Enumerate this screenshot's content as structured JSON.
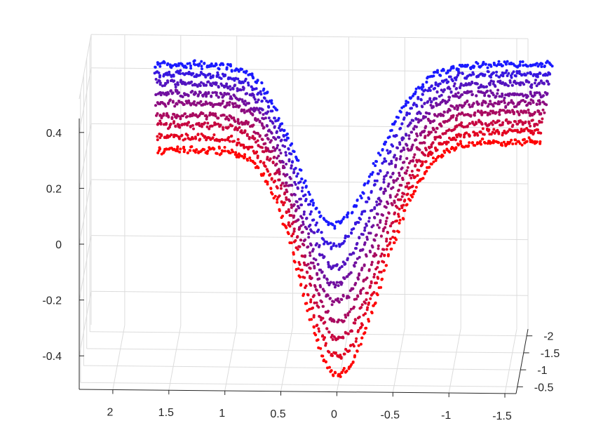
{
  "chart_data": {
    "type": "scatter",
    "title": "",
    "xlabel": "",
    "ylabel": "",
    "zlabel": "",
    "grid": true,
    "legend": "none",
    "view": "3d",
    "x_axis": {
      "ticks": [
        2,
        1.5,
        1,
        0.5,
        0,
        -0.5,
        -1,
        -1.5
      ],
      "tick_labels": [
        "2",
        "1.5",
        "1",
        "0.5",
        "0",
        "-0.5",
        "-1",
        "-1.5"
      ],
      "range": [
        2.3,
        -1.6
      ]
    },
    "y_axis": {
      "ticks": [
        -0.5,
        -1,
        -1.5,
        -2
      ],
      "tick_labels": [
        "-0.5",
        "-1",
        "-1.5",
        "-2"
      ],
      "range": [
        -0.3,
        -2.2
      ]
    },
    "z_axis": {
      "ticks": [
        -0.4,
        -0.2,
        0,
        0.2,
        0.4
      ],
      "tick_labels": [
        "-0.4",
        "-0.2",
        "0",
        "0.2",
        "0.4"
      ],
      "range": [
        -0.52,
        0.52
      ]
    },
    "colormap": {
      "start": "#ff0000",
      "end": "#1a1aff"
    },
    "series_shape": "v-shaped trough",
    "series": [
      {
        "y": -0.4,
        "plateau_left": 0.33,
        "plateau_right": 0.37,
        "min_z": -0.47,
        "min_x": 0.0,
        "left_x": 1.6,
        "right_x": -1.8
      },
      {
        "y": -0.6,
        "plateau_left": 0.35,
        "plateau_right": 0.38,
        "min_z": -0.43,
        "min_x": 0.01,
        "left_x": 1.62,
        "right_x": -1.8
      },
      {
        "y": -0.8,
        "plateau_left": 0.37,
        "plateau_right": 0.39,
        "min_z": -0.39,
        "min_x": 0.02,
        "left_x": 1.63,
        "right_x": -1.8
      },
      {
        "y": -1.0,
        "plateau_left": 0.38,
        "plateau_right": 0.4,
        "min_z": -0.35,
        "min_x": 0.04,
        "left_x": 1.64,
        "right_x": -1.81
      },
      {
        "y": -1.2,
        "plateau_left": 0.4,
        "plateau_right": 0.41,
        "min_z": -0.31,
        "min_x": 0.06,
        "left_x": 1.66,
        "right_x": -1.81
      },
      {
        "y": -1.4,
        "plateau_left": 0.41,
        "plateau_right": 0.42,
        "min_z": -0.27,
        "min_x": 0.08,
        "left_x": 1.67,
        "right_x": -1.81
      },
      {
        "y": -1.6,
        "plateau_left": 0.42,
        "plateau_right": 0.43,
        "min_z": -0.23,
        "min_x": 0.09,
        "left_x": 1.68,
        "right_x": -1.82
      },
      {
        "y": -1.8,
        "plateau_left": 0.43,
        "plateau_right": 0.44,
        "min_z": -0.18,
        "min_x": 0.11,
        "left_x": 1.7,
        "right_x": -1.82
      },
      {
        "y": -2.0,
        "plateau_left": 0.44,
        "plateau_right": 0.45,
        "min_z": -0.13,
        "min_x": 0.13,
        "left_x": 1.71,
        "right_x": -1.82
      }
    ]
  }
}
